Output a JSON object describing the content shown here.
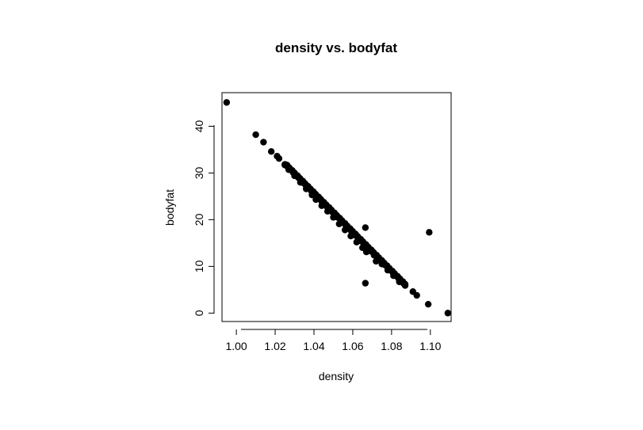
{
  "chart_data": {
    "type": "scatter",
    "title": "density vs. bodyfat",
    "xlabel": "density",
    "ylabel": "bodyfat",
    "xlim": [
      0.9926,
      1.1107
    ],
    "ylim": [
      -1.8,
      47.2
    ],
    "xticks": [
      1.0,
      1.02,
      1.04,
      1.06,
      1.08,
      1.1
    ],
    "xtick_labels": [
      "1.00",
      "1.02",
      "1.04",
      "1.06",
      "1.08",
      "1.10"
    ],
    "yticks": [
      0,
      10,
      20,
      30,
      40
    ],
    "ytick_labels": [
      "0",
      "10",
      "20",
      "30",
      "40"
    ],
    "grid": false,
    "marker_color": "#000000",
    "points": {
      "x": [
        0.995,
        1.01,
        1.014,
        1.018,
        1.021,
        1.022,
        1.025,
        1.027,
        1.03,
        1.033,
        1.036,
        1.039,
        1.041,
        1.044,
        1.047,
        1.05,
        1.053,
        1.056,
        1.059,
        1.062,
        1.065,
        1.067,
        1.068,
        1.071,
        1.072,
        1.075,
        1.078,
        1.081,
        1.084,
        1.087,
        1.091,
        1.093,
        1.0989,
        1.0665,
        1.0665,
        1.0994,
        1.109
      ],
      "y": [
        45.1,
        38.2,
        36.6,
        34.6,
        33.6,
        33.1,
        31.7,
        30.7,
        29.4,
        28.0,
        26.6,
        25.3,
        24.3,
        23.0,
        21.8,
        20.5,
        19.1,
        17.8,
        16.5,
        15.2,
        14.0,
        13.1,
        13.3,
        12.4,
        11.1,
        10.5,
        9.2,
        8.0,
        6.7,
        5.9,
        4.6,
        3.8,
        1.9,
        18.3,
        6.4,
        17.3,
        0.0
      ]
    },
    "dense_band": {
      "x_start": 1.025,
      "y_start": 32.0,
      "x_end": 1.087,
      "y_end": 6.1
    }
  }
}
